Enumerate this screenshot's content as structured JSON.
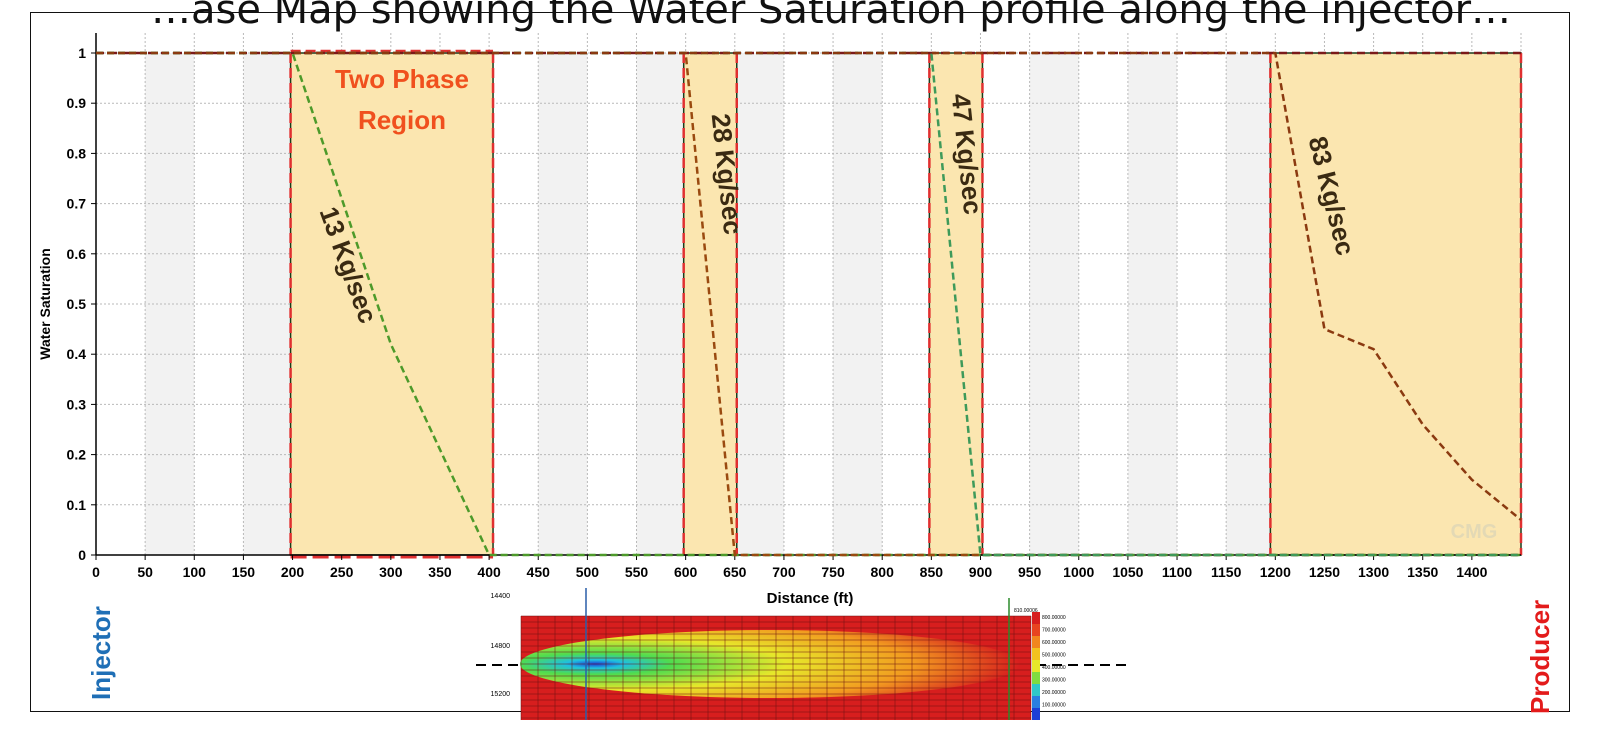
{
  "page": {
    "title": "…ase Map showing the Water Saturation profile along the injector…",
    "left_well": "Injector",
    "right_well": "Producer",
    "watermark": "CMG"
  },
  "chart_data": {
    "type": "line",
    "xlabel": "Distance (ft)",
    "ylabel": "Water Saturation",
    "xlim": [
      0,
      1450
    ],
    "ylim": [
      0,
      1
    ],
    "xticks": [
      0,
      50,
      100,
      150,
      200,
      250,
      300,
      350,
      400,
      450,
      500,
      550,
      600,
      650,
      700,
      750,
      800,
      850,
      900,
      950,
      1000,
      1050,
      1100,
      1150,
      1200,
      1250,
      1300,
      1350,
      1400
    ],
    "yticks": [
      0,
      0.1,
      0.2,
      0.3,
      0.4,
      0.5,
      0.6,
      0.7,
      0.8,
      0.9,
      1
    ],
    "grid": true,
    "regions": [
      {
        "x0": 198,
        "x1": 404,
        "label": "13 Kg/sec"
      },
      {
        "x0": 598,
        "x1": 652,
        "label": "28 Kg/sec"
      },
      {
        "x0": 848,
        "x1": 902,
        "label": "47 Kg/sec"
      },
      {
        "x0": 1195,
        "x1": 1450,
        "label": "83 Kg/sec"
      }
    ],
    "region_title": "Two Phase Region",
    "series": [
      {
        "name": "13 Kg/sec",
        "color": "#4d9a2a",
        "x": [
          0,
          200,
          300,
          400,
          1450
        ],
        "y": [
          1,
          1,
          0.42,
          0,
          0
        ]
      },
      {
        "name": "28 Kg/sec",
        "color": "#9a4a10",
        "x": [
          0,
          600,
          650,
          1450
        ],
        "y": [
          1,
          1,
          0,
          0
        ]
      },
      {
        "name": "47 Kg/sec",
        "color": "#3e9a5a",
        "x": [
          0,
          850,
          900,
          1450
        ],
        "y": [
          1,
          1,
          0,
          0
        ]
      },
      {
        "name": "83 Kg/sec",
        "color": "#8b3a10",
        "x": [
          0,
          1200,
          1250,
          1300,
          1350,
          1400,
          1450
        ],
        "y": [
          1,
          1,
          0.45,
          0.41,
          0.26,
          0.15,
          0.07
        ]
      }
    ],
    "saturation_line": {
      "color": "#7a1a1a",
      "y": 1
    },
    "inset": {
      "depth_ticks": [
        "14400",
        "14800",
        "15200"
      ],
      "legend_values": [
        "810.00006",
        "800.00000",
        "700.00000",
        "600.00000",
        "500.00000",
        "400.00000",
        "300.00000",
        "200.00000",
        "100.00000"
      ]
    }
  }
}
